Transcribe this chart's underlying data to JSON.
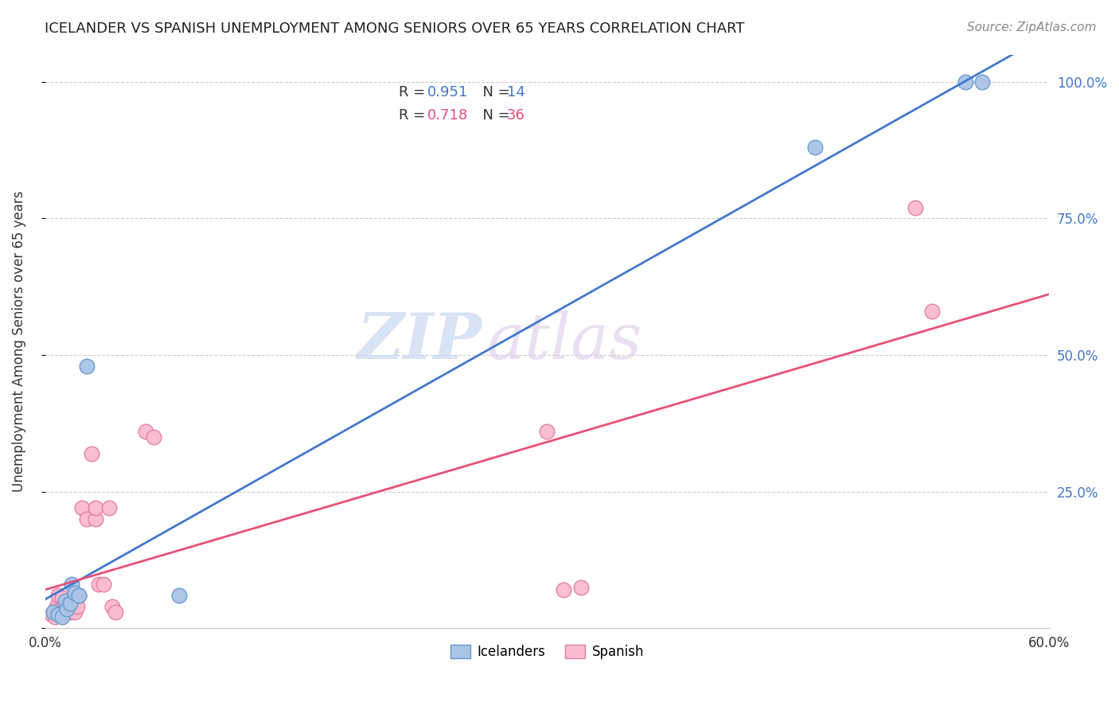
{
  "title": "ICELANDER VS SPANISH UNEMPLOYMENT AMONG SENIORS OVER 65 YEARS CORRELATION CHART",
  "source": "Source: ZipAtlas.com",
  "ylabel": "Unemployment Among Seniors over 65 years",
  "x_min": 0.0,
  "x_max": 0.6,
  "y_min": 0.0,
  "y_max": 1.05,
  "x_ticks": [
    0.0,
    0.1,
    0.2,
    0.3,
    0.4,
    0.5,
    0.6
  ],
  "x_tick_labels": [
    "0.0%",
    "",
    "",
    "",
    "",
    "",
    "60.0%"
  ],
  "y_ticks": [
    0.0,
    0.25,
    0.5,
    0.75,
    1.0
  ],
  "y_tick_labels_right": [
    "",
    "25.0%",
    "50.0%",
    "75.0%",
    "100.0%"
  ],
  "icelander_color": "#aac4e8",
  "icelander_edge_color": "#6699cc",
  "spanish_color": "#f9bbd0",
  "spanish_edge_color": "#e87ca0",
  "line_blue": "#4477cc",
  "line_pink": "#e8507a",
  "r_icelander": "0.951",
  "n_icelander": "14",
  "r_spanish": "0.718",
  "n_spanish": "36",
  "watermark_zip": "ZIP",
  "watermark_atlas": "atlas",
  "icelanders_x": [
    0.005,
    0.008,
    0.01,
    0.012,
    0.013,
    0.015,
    0.016,
    0.018,
    0.02,
    0.025,
    0.08,
    0.46,
    0.55,
    0.56
  ],
  "icelanders_y": [
    0.03,
    0.025,
    0.02,
    0.05,
    0.035,
    0.045,
    0.08,
    0.065,
    0.06,
    0.48,
    0.06,
    0.88,
    1.0,
    1.0
  ],
  "spanish_x": [
    0.004,
    0.005,
    0.006,
    0.007,
    0.008,
    0.008,
    0.009,
    0.01,
    0.01,
    0.011,
    0.012,
    0.013,
    0.014,
    0.015,
    0.016,
    0.017,
    0.018,
    0.019,
    0.02,
    0.022,
    0.025,
    0.028,
    0.03,
    0.03,
    0.032,
    0.035,
    0.038,
    0.04,
    0.042,
    0.06,
    0.065,
    0.3,
    0.31,
    0.32,
    0.52,
    0.53
  ],
  "spanish_y": [
    0.025,
    0.03,
    0.02,
    0.04,
    0.045,
    0.06,
    0.035,
    0.025,
    0.055,
    0.04,
    0.03,
    0.035,
    0.045,
    0.03,
    0.05,
    0.05,
    0.03,
    0.04,
    0.06,
    0.22,
    0.2,
    0.32,
    0.2,
    0.22,
    0.08,
    0.08,
    0.22,
    0.04,
    0.03,
    0.36,
    0.35,
    0.36,
    0.07,
    0.075,
    0.77,
    0.58
  ]
}
